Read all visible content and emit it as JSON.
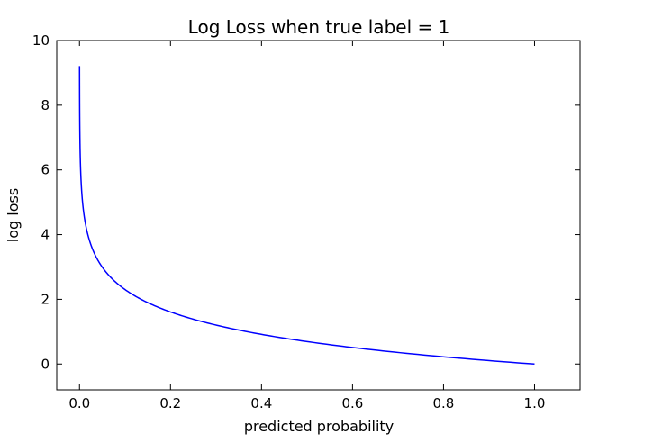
{
  "chart_data": {
    "type": "line",
    "title": "Log Loss when true label = 1",
    "xlabel": "predicted probability",
    "ylabel": "log loss",
    "xlim": [
      -0.05,
      1.1
    ],
    "ylim": [
      -0.8,
      10
    ],
    "xticks": [
      0.0,
      0.2,
      0.4,
      0.6,
      0.8,
      1.0
    ],
    "xtick_labels": [
      "0.0",
      "0.2",
      "0.4",
      "0.6",
      "0.8",
      "1.0"
    ],
    "yticks": [
      0,
      2,
      4,
      6,
      8,
      10
    ],
    "ytick_labels": [
      "0",
      "2",
      "4",
      "6",
      "8",
      "10"
    ],
    "grid": false,
    "series": [
      {
        "color": "#0000ff",
        "function": "-ln(x)",
        "x_start": 0.0001,
        "x_end": 1.0,
        "x": [
          0.0001,
          0.001,
          0.005,
          0.01,
          0.02,
          0.03,
          0.05,
          0.1,
          0.2,
          0.3,
          0.4,
          0.5,
          0.6,
          0.7,
          0.8,
          0.9,
          1.0
        ],
        "y": [
          9.21,
          6.91,
          5.3,
          4.61,
          3.91,
          3.51,
          3.0,
          2.3,
          1.61,
          1.2,
          0.92,
          0.69,
          0.51,
          0.36,
          0.22,
          0.11,
          0.0
        ]
      }
    ]
  }
}
